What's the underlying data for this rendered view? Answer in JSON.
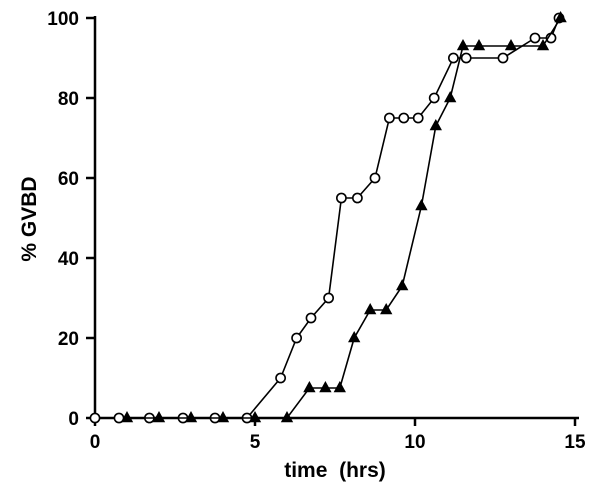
{
  "chart_data": {
    "type": "line",
    "title": "",
    "xlabel": "time  (hrs)",
    "ylabel": "% GVBD",
    "xlim": [
      0,
      15
    ],
    "ylim": [
      0,
      100
    ],
    "xticks": [
      0,
      5,
      10,
      15
    ],
    "yticks": [
      0,
      20,
      40,
      60,
      80,
      100
    ],
    "xtick_labels": [
      "0",
      "5",
      "10",
      "15"
    ],
    "ytick_labels": [
      "0",
      "20",
      "40",
      "60",
      "80",
      "100"
    ],
    "grid": false,
    "legend": "none",
    "series": [
      {
        "marker": "open-circle",
        "color": "#000000",
        "x": [
          0,
          0.75,
          1.7,
          2.75,
          3.75,
          4.75,
          5.8,
          6.3,
          6.75,
          7.3,
          7.7,
          8.2,
          8.75,
          9.2,
          9.65,
          10.1,
          10.6,
          11.2,
          11.6,
          12.75,
          13.75,
          14.25,
          14.5
        ],
        "y": [
          0,
          0,
          0,
          0,
          0,
          0,
          10,
          20,
          25,
          30,
          55,
          55,
          60,
          75,
          75,
          75,
          80,
          90,
          90,
          90,
          95,
          95,
          100
        ]
      },
      {
        "marker": "filled-triangle",
        "color": "#000000",
        "x": [
          1,
          2,
          3,
          4,
          5,
          6,
          6.7,
          7.2,
          7.65,
          8.1,
          8.6,
          9.1,
          9.6,
          10.2,
          10.65,
          11.1,
          11.5,
          12,
          13,
          14,
          14.55
        ],
        "y": [
          0,
          0,
          0,
          0,
          0,
          0,
          7.5,
          7.5,
          7.5,
          20,
          27,
          27,
          33,
          53,
          73,
          80,
          93,
          93,
          93,
          93,
          100
        ]
      }
    ]
  }
}
